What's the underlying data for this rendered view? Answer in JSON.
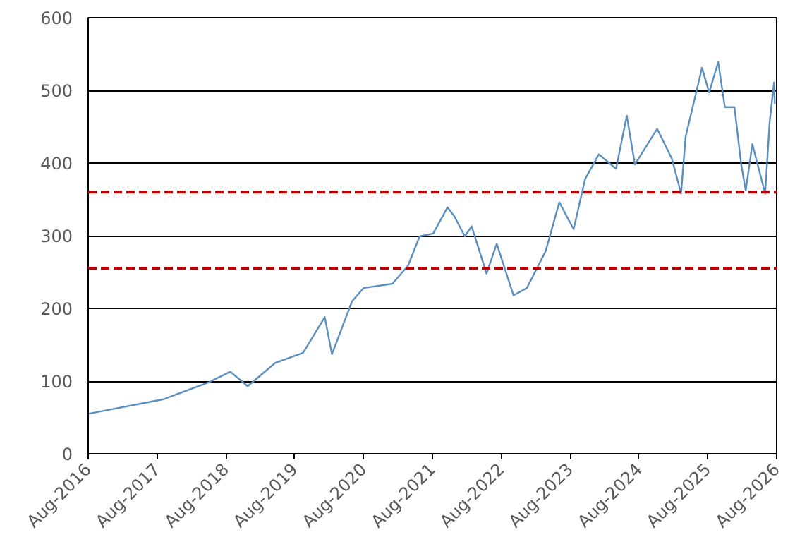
{
  "chart_data": {
    "type": "line",
    "x": [
      "2016-08-01",
      "2017-09-05",
      "2018-05-08",
      "2018-08-25",
      "2018-11-25",
      "2019-04-20",
      "2019-09-15",
      "2020-01-08",
      "2020-02-15",
      "2020-06-01",
      "2020-08-01",
      "2021-01-01",
      "2021-03-25",
      "2021-05-25",
      "2021-08-05",
      "2021-10-20",
      "2021-11-25",
      "2022-01-20",
      "2022-02-25",
      "2022-05-15",
      "2022-07-08",
      "2022-10-05",
      "2022-12-15",
      "2023-03-25",
      "2023-06-05",
      "2023-08-20",
      "2023-10-20",
      "2024-01-01",
      "2024-04-01",
      "2024-05-28",
      "2024-07-10",
      "2024-11-05",
      "2025-01-22",
      "2025-03-12",
      "2025-04-05",
      "2025-07-01",
      "2025-08-08",
      "2025-09-25",
      "2025-10-30",
      "2025-12-20",
      "2026-01-25",
      "2026-02-18",
      "2026-03-25",
      "2026-06-01",
      "2026-06-25",
      "2026-07-18",
      "2026-07-22"
    ],
    "series": [
      {
        "color": "#5b8fc0",
        "values": [
          55,
          75,
          99,
          113,
          93,
          125,
          139,
          188,
          137,
          210,
          228,
          234,
          259,
          299,
          303,
          339,
          327,
          299,
          313,
          248,
          289,
          218,
          228,
          279,
          346,
          309,
          378,
          412,
          392,
          465,
          398,
          447,
          406,
          358,
          436,
          531,
          497,
          539,
          477,
          477,
          398,
          362,
          426,
          358,
          457,
          511,
          481
        ]
      }
    ],
    "xlim": [
      "2016-08-01",
      "2026-08-01"
    ],
    "xticks": [
      {
        "value": "2016-08-01",
        "label": "Aug-2016"
      },
      {
        "value": "2017-08-01",
        "label": "Aug-2017"
      },
      {
        "value": "2018-08-01",
        "label": "Aug-2018"
      },
      {
        "value": "2019-08-01",
        "label": "Aug-2019"
      },
      {
        "value": "2020-08-01",
        "label": "Aug-2020"
      },
      {
        "value": "2021-08-01",
        "label": "Aug-2021"
      },
      {
        "value": "2022-08-01",
        "label": "Aug-2022"
      },
      {
        "value": "2023-08-01",
        "label": "Aug-2023"
      },
      {
        "value": "2024-08-01",
        "label": "Aug-2024"
      },
      {
        "value": "2025-08-01",
        "label": "Aug-2025"
      },
      {
        "value": "2026-08-01",
        "label": "Aug-2026"
      }
    ],
    "ylim": [
      0,
      600
    ],
    "yticks": [
      0,
      100,
      200,
      300,
      400,
      500,
      600
    ],
    "grid": "y",
    "line_style": "solid",
    "ref_lines": [
      {
        "axis": "y",
        "value": 360,
        "color": "#c00000",
        "line_style": "dashed"
      },
      {
        "axis": "y",
        "value": 255,
        "color": "#c00000",
        "line_style": "dashed"
      }
    ]
  }
}
